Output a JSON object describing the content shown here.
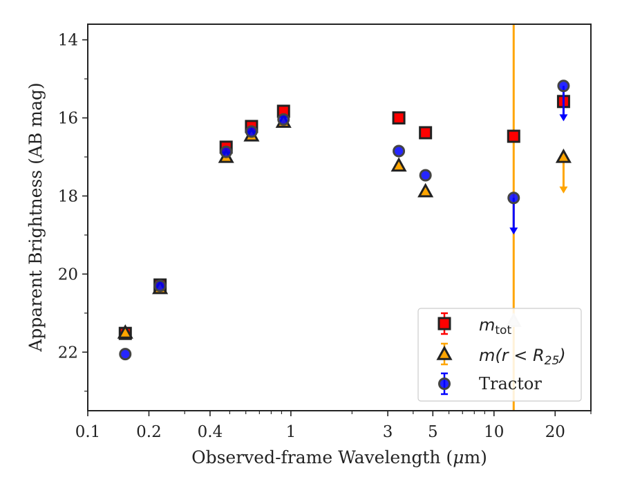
{
  "chart_data": {
    "type": "scatter",
    "xlabel_pre": "Observed-frame Wavelength (",
    "xlabel_mu": "μ",
    "xlabel_post": "m)",
    "ylabel": "Apparent Brightness (AB mag)",
    "xscale": "log",
    "xlim": [
      0.1,
      30
    ],
    "ylim": [
      23.5,
      13.6
    ],
    "y_inverted": true,
    "grid": false,
    "x_ticks": [
      {
        "value": 0.1,
        "label": "0.1"
      },
      {
        "value": 0.2,
        "label": "0.2"
      },
      {
        "value": 0.4,
        "label": "0.4"
      },
      {
        "value": 1,
        "label": "1"
      },
      {
        "value": 3,
        "label": "3"
      },
      {
        "value": 5,
        "label": "5"
      },
      {
        "value": 10,
        "label": "10"
      },
      {
        "value": 20,
        "label": "20"
      }
    ],
    "y_ticks": [
      {
        "value": 14,
        "label": "14"
      },
      {
        "value": 16,
        "label": "16"
      },
      {
        "value": 18,
        "label": "18"
      },
      {
        "value": 20,
        "label": "20"
      },
      {
        "value": 22,
        "label": "22"
      }
    ],
    "vertical_line": {
      "x": 12.5,
      "color": "#FFA500"
    },
    "legend_position": "lower-right",
    "series": [
      {
        "label_main": "m",
        "label_sub": "tot",
        "marker": "square",
        "color": "#FF0000",
        "points": [
          {
            "x": 0.153,
            "y": 21.52
          },
          {
            "x": 0.227,
            "y": 20.28
          },
          {
            "x": 0.48,
            "y": 16.75
          },
          {
            "x": 0.64,
            "y": 16.22
          },
          {
            "x": 0.92,
            "y": 15.83
          },
          {
            "x": 3.4,
            "y": 16.0
          },
          {
            "x": 4.6,
            "y": 16.38
          },
          {
            "x": 12.5,
            "y": 16.47
          },
          {
            "x": 22.0,
            "y": 15.58
          }
        ]
      },
      {
        "label_main": "m(r < R",
        "label_sub": "25",
        "label_tail": ")",
        "marker": "triangle",
        "color": "#FFA500",
        "points": [
          {
            "x": 0.153,
            "y": 21.5
          },
          {
            "x": 0.227,
            "y": 20.36
          },
          {
            "x": 0.48,
            "y": 17.0
          },
          {
            "x": 0.64,
            "y": 16.45
          },
          {
            "x": 0.92,
            "y": 16.1
          },
          {
            "x": 3.4,
            "y": 17.22
          },
          {
            "x": 4.6,
            "y": 17.88
          },
          {
            "x": 12.5,
            "y": 21.2
          },
          {
            "x": 22.0,
            "y": 17.0,
            "upper_limit_to": 17.9
          }
        ]
      },
      {
        "label_main": "Tractor",
        "marker": "circle",
        "color": "#0000FF",
        "points": [
          {
            "x": 0.153,
            "y": 22.05
          },
          {
            "x": 0.227,
            "y": 20.3
          },
          {
            "x": 0.48,
            "y": 16.87
          },
          {
            "x": 0.64,
            "y": 16.35
          },
          {
            "x": 0.92,
            "y": 16.04
          },
          {
            "x": 3.4,
            "y": 16.85
          },
          {
            "x": 4.6,
            "y": 17.47
          },
          {
            "x": 12.5,
            "y": 18.05,
            "upper_limit_to": 18.95
          },
          {
            "x": 22.0,
            "y": 15.18,
            "upper_limit_to": 16.05
          }
        ]
      }
    ]
  }
}
